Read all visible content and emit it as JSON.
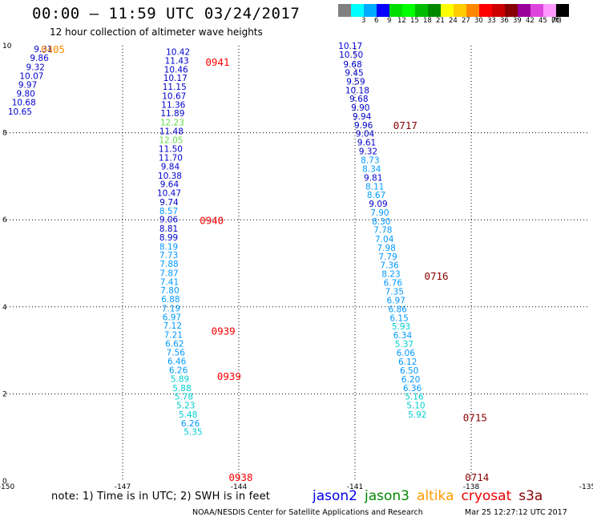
{
  "header": {
    "title": "00:00 – 11:59 UTC 03/24/2017",
    "subtitle": "12 hour collection of altimeter wave heights"
  },
  "color_scale": {
    "unit_label": "(ft)",
    "steps": [
      {
        "label": "",
        "color": "#808080"
      },
      {
        "label": "3",
        "color": "#00ffff"
      },
      {
        "label": "6",
        "color": "#00aaff"
      },
      {
        "label": "9",
        "color": "#0000ff"
      },
      {
        "label": "12",
        "color": "#00dd00"
      },
      {
        "label": "15",
        "color": "#00ff00"
      },
      {
        "label": "18",
        "color": "#00bb00"
      },
      {
        "label": "21",
        "color": "#008800"
      },
      {
        "label": "24",
        "color": "#ffff00"
      },
      {
        "label": "27",
        "color": "#ffcc00"
      },
      {
        "label": "30",
        "color": "#ff8800"
      },
      {
        "label": "33",
        "color": "#ff0000"
      },
      {
        "label": "36",
        "color": "#cc0000"
      },
      {
        "label": "39",
        "color": "#880000"
      },
      {
        "label": "42",
        "color": "#990099"
      },
      {
        "label": "45",
        "color": "#dd44dd"
      },
      {
        "label": "70",
        "color": "#ff99ff"
      },
      {
        "label": "",
        "color": "#000000"
      }
    ]
  },
  "chart_data": {
    "type": "scatter",
    "xlim": [
      -150,
      -135
    ],
    "ylim": [
      0,
      10
    ],
    "x_ticks": [
      "-150",
      "-147",
      "-144",
      "-141",
      "-138",
      "-135"
    ],
    "y_ticks": [
      "0",
      "2",
      "4",
      "6",
      "8",
      "10"
    ],
    "grid": true,
    "series": [
      {
        "name": "jason2",
        "time_labels": [
          {
            "text": "0405",
            "x": -148.8,
            "y": 9.93,
            "color": "#ff8800"
          }
        ],
        "points": [
          {
            "x": -149.05,
            "y": 9.93,
            "v": "9.31",
            "color": "#0000cc"
          },
          {
            "x": -149.15,
            "y": 9.72,
            "v": "9.86",
            "color": "#0000cc"
          },
          {
            "x": -149.25,
            "y": 9.51,
            "v": "9.32",
            "color": "#0000cc"
          },
          {
            "x": -149.35,
            "y": 9.31,
            "v": "10.07",
            "color": "#0000cc"
          },
          {
            "x": -149.45,
            "y": 9.11,
            "v": "9.97",
            "color": "#0000cc"
          },
          {
            "x": -149.5,
            "y": 8.9,
            "v": "9.80",
            "color": "#0000cc"
          },
          {
            "x": -149.55,
            "y": 8.7,
            "v": "10.68",
            "color": "#0000cc"
          },
          {
            "x": -149.65,
            "y": 8.49,
            "v": "10.65",
            "color": "#0000cc"
          }
        ]
      },
      {
        "name": "cryosat",
        "time_labels": [
          {
            "text": "0941",
            "x": -144.55,
            "y": 9.63,
            "color": "#ff0000"
          },
          {
            "text": "0940",
            "x": -144.7,
            "y": 5.99,
            "color": "#ff0000"
          },
          {
            "text": "0939",
            "x": -144.4,
            "y": 3.45,
            "color": "#ff0000"
          },
          {
            "text": "0939",
            "x": -144.25,
            "y": 2.41,
            "color": "#ff0000"
          },
          {
            "text": "0938",
            "x": -143.95,
            "y": 0.09,
            "color": "#ff0000"
          }
        ],
        "points": [
          {
            "x": -145.57,
            "y": 9.86,
            "v": "10.42",
            "color": "#0000cc"
          },
          {
            "x": -145.6,
            "y": 9.66,
            "v": "11.43",
            "color": "#0000cc"
          },
          {
            "x": -145.62,
            "y": 9.46,
            "v": "10.46",
            "color": "#0000cc"
          },
          {
            "x": -145.64,
            "y": 9.26,
            "v": "10.17",
            "color": "#0000cc"
          },
          {
            "x": -145.66,
            "y": 9.06,
            "v": "11.15",
            "color": "#0000cc"
          },
          {
            "x": -145.67,
            "y": 8.85,
            "v": "10.67",
            "color": "#0000cc"
          },
          {
            "x": -145.69,
            "y": 8.65,
            "v": "11.36",
            "color": "#0000cc"
          },
          {
            "x": -145.71,
            "y": 8.45,
            "v": "11.89",
            "color": "#0000cc"
          },
          {
            "x": -145.72,
            "y": 8.24,
            "v": "12.23",
            "color": "#66dd44"
          },
          {
            "x": -145.74,
            "y": 8.04,
            "v": "11.48",
            "color": "#0000cc"
          },
          {
            "x": -145.75,
            "y": 7.84,
            "v": "12.05",
            "color": "#66dd44"
          },
          {
            "x": -145.76,
            "y": 7.63,
            "v": "11.50",
            "color": "#0000cc"
          },
          {
            "x": -145.76,
            "y": 7.43,
            "v": "11.70",
            "color": "#0000cc"
          },
          {
            "x": -145.77,
            "y": 7.23,
            "v": "9.84",
            "color": "#0000cc"
          },
          {
            "x": -145.78,
            "y": 7.02,
            "v": "10.38",
            "color": "#0000cc"
          },
          {
            "x": -145.79,
            "y": 6.82,
            "v": "9.64",
            "color": "#0000cc"
          },
          {
            "x": -145.8,
            "y": 6.62,
            "v": "10.47",
            "color": "#0000cc"
          },
          {
            "x": -145.8,
            "y": 6.41,
            "v": "9.74",
            "color": "#0000cc"
          },
          {
            "x": -145.81,
            "y": 6.21,
            "v": "8.57",
            "color": "#0099ff"
          },
          {
            "x": -145.81,
            "y": 6.01,
            "v": "9.06",
            "color": "#0000cc"
          },
          {
            "x": -145.81,
            "y": 5.8,
            "v": "8.81",
            "color": "#0000cc"
          },
          {
            "x": -145.81,
            "y": 5.6,
            "v": "8.99",
            "color": "#0000cc"
          },
          {
            "x": -145.81,
            "y": 5.39,
            "v": "8.19",
            "color": "#0099ff"
          },
          {
            "x": -145.81,
            "y": 5.19,
            "v": "7.73",
            "color": "#0099ff"
          },
          {
            "x": -145.8,
            "y": 4.99,
            "v": "7.88",
            "color": "#0099ff"
          },
          {
            "x": -145.8,
            "y": 4.78,
            "v": "7.87",
            "color": "#0099ff"
          },
          {
            "x": -145.79,
            "y": 4.58,
            "v": "7.41",
            "color": "#0099ff"
          },
          {
            "x": -145.78,
            "y": 4.38,
            "v": "7.80",
            "color": "#0099ff"
          },
          {
            "x": -145.76,
            "y": 4.18,
            "v": "6.88",
            "color": "#0099ff"
          },
          {
            "x": -145.75,
            "y": 3.97,
            "v": "7.19",
            "color": "#0099ff"
          },
          {
            "x": -145.73,
            "y": 3.77,
            "v": "6.97",
            "color": "#0099ff"
          },
          {
            "x": -145.71,
            "y": 3.57,
            "v": "7.12",
            "color": "#0099ff"
          },
          {
            "x": -145.69,
            "y": 3.36,
            "v": "7.21",
            "color": "#0099ff"
          },
          {
            "x": -145.66,
            "y": 3.16,
            "v": "6.62",
            "color": "#0099ff"
          },
          {
            "x": -145.63,
            "y": 2.96,
            "v": "7.56",
            "color": "#0099ff"
          },
          {
            "x": -145.6,
            "y": 2.75,
            "v": "6.46",
            "color": "#0099ff"
          },
          {
            "x": -145.56,
            "y": 2.55,
            "v": "6.26",
            "color": "#0099ff"
          },
          {
            "x": -145.52,
            "y": 2.35,
            "v": "5.89",
            "color": "#00cccc"
          },
          {
            "x": -145.47,
            "y": 2.14,
            "v": "5.88",
            "color": "#00cccc"
          },
          {
            "x": -145.42,
            "y": 1.94,
            "v": "5.78",
            "color": "#00cccc"
          },
          {
            "x": -145.37,
            "y": 1.74,
            "v": "5.23",
            "color": "#00cccc"
          },
          {
            "x": -145.31,
            "y": 1.53,
            "v": "5.48",
            "color": "#00cccc"
          },
          {
            "x": -145.25,
            "y": 1.33,
            "v": "6.26",
            "color": "#0099ff"
          },
          {
            "x": -145.18,
            "y": 1.13,
            "v": "5.35",
            "color": "#00cccc"
          }
        ]
      },
      {
        "name": "s3a",
        "time_labels": [
          {
            "text": "0717",
            "x": -139.7,
            "y": 8.18,
            "color": "#880000"
          },
          {
            "text": "0716",
            "x": -138.9,
            "y": 4.71,
            "color": "#880000"
          },
          {
            "text": "0715",
            "x": -137.9,
            "y": 1.46,
            "color": "#880000"
          },
          {
            "text": "0714",
            "x": -137.85,
            "y": 0.09,
            "color": "#880000"
          }
        ],
        "points": [
          {
            "x": -141.12,
            "y": 10.0,
            "v": "10.17",
            "color": "#0000cc"
          },
          {
            "x": -141.1,
            "y": 9.8,
            "v": "10.50",
            "color": "#0000cc"
          },
          {
            "x": -141.06,
            "y": 9.58,
            "v": "9.68",
            "color": "#0000cc"
          },
          {
            "x": -141.02,
            "y": 9.38,
            "v": "9.45",
            "color": "#0000cc"
          },
          {
            "x": -140.98,
            "y": 9.18,
            "v": "9.59",
            "color": "#0000cc"
          },
          {
            "x": -140.94,
            "y": 8.98,
            "v": "10.18",
            "color": "#0000cc"
          },
          {
            "x": -140.9,
            "y": 8.78,
            "v": "9.68",
            "color": "#0000cc"
          },
          {
            "x": -140.86,
            "y": 8.58,
            "v": "9.90",
            "color": "#0000cc"
          },
          {
            "x": -140.82,
            "y": 8.38,
            "v": "9.94",
            "color": "#0000cc"
          },
          {
            "x": -140.78,
            "y": 8.18,
            "v": "9.96",
            "color": "#0000cc"
          },
          {
            "x": -140.74,
            "y": 7.98,
            "v": "9.04",
            "color": "#0000cc"
          },
          {
            "x": -140.7,
            "y": 7.78,
            "v": "9.61",
            "color": "#0000cc"
          },
          {
            "x": -140.66,
            "y": 7.58,
            "v": "9.32",
            "color": "#0000cc"
          },
          {
            "x": -140.61,
            "y": 7.38,
            "v": "8.73",
            "color": "#0099ff"
          },
          {
            "x": -140.57,
            "y": 7.17,
            "v": "8.34",
            "color": "#0099ff"
          },
          {
            "x": -140.53,
            "y": 6.97,
            "v": "9.81",
            "color": "#0000cc"
          },
          {
            "x": -140.49,
            "y": 6.77,
            "v": "8.11",
            "color": "#0099ff"
          },
          {
            "x": -140.45,
            "y": 6.57,
            "v": "8.67",
            "color": "#0099ff"
          },
          {
            "x": -140.4,
            "y": 6.37,
            "v": "9.09",
            "color": "#0000cc"
          },
          {
            "x": -140.36,
            "y": 6.17,
            "v": "7.90",
            "color": "#0099ff"
          },
          {
            "x": -140.32,
            "y": 5.97,
            "v": "8.30",
            "color": "#0099ff"
          },
          {
            "x": -140.28,
            "y": 5.77,
            "v": "7.78",
            "color": "#0099ff"
          },
          {
            "x": -140.24,
            "y": 5.56,
            "v": "7.04",
            "color": "#0099ff"
          },
          {
            "x": -140.19,
            "y": 5.36,
            "v": "7.98",
            "color": "#0099ff"
          },
          {
            "x": -140.15,
            "y": 5.16,
            "v": "7.79",
            "color": "#0099ff"
          },
          {
            "x": -140.11,
            "y": 4.96,
            "v": "7.36",
            "color": "#0099ff"
          },
          {
            "x": -140.07,
            "y": 4.76,
            "v": "8.23",
            "color": "#0099ff"
          },
          {
            "x": -140.02,
            "y": 4.56,
            "v": "6.76",
            "color": "#0099ff"
          },
          {
            "x": -139.98,
            "y": 4.36,
            "v": "7.35",
            "color": "#0099ff"
          },
          {
            "x": -139.94,
            "y": 4.15,
            "v": "6.97",
            "color": "#0099ff"
          },
          {
            "x": -139.9,
            "y": 3.95,
            "v": "6.86",
            "color": "#0099ff"
          },
          {
            "x": -139.86,
            "y": 3.75,
            "v": "6.15",
            "color": "#0099ff"
          },
          {
            "x": -139.81,
            "y": 3.55,
            "v": "5.93",
            "color": "#00cccc"
          },
          {
            "x": -139.77,
            "y": 3.35,
            "v": "6.34",
            "color": "#0099ff"
          },
          {
            "x": -139.73,
            "y": 3.15,
            "v": "5.37",
            "color": "#00cccc"
          },
          {
            "x": -139.69,
            "y": 2.95,
            "v": "6.06",
            "color": "#0099ff"
          },
          {
            "x": -139.64,
            "y": 2.74,
            "v": "6.12",
            "color": "#0099ff"
          },
          {
            "x": -139.6,
            "y": 2.54,
            "v": "6.50",
            "color": "#0099ff"
          },
          {
            "x": -139.56,
            "y": 2.34,
            "v": "6.20",
            "color": "#0099ff"
          },
          {
            "x": -139.52,
            "y": 2.14,
            "v": "6.36",
            "color": "#0099ff"
          },
          {
            "x": -139.47,
            "y": 1.94,
            "v": "5.16",
            "color": "#00cccc"
          },
          {
            "x": -139.43,
            "y": 1.74,
            "v": "5.10",
            "color": "#00cccc"
          },
          {
            "x": -139.39,
            "y": 1.53,
            "v": "5.92",
            "color": "#00cccc"
          }
        ]
      }
    ]
  },
  "note": "note:  1) Time is in UTC;  2) SWH is in feet",
  "satellites": [
    {
      "name": "jason2",
      "color": "#0000ee"
    },
    {
      "name": "jason3",
      "color": "#008800"
    },
    {
      "name": "altika",
      "color": "#ff9900"
    },
    {
      "name": "cryosat",
      "color": "#ee0000"
    },
    {
      "name": "s3a",
      "color": "#880000"
    }
  ],
  "footer": {
    "credit": "NOAA/NESDIS Center for Satellite Applications and Research",
    "timestamp": "Mar 25 12:27:12 UTC 2017"
  }
}
